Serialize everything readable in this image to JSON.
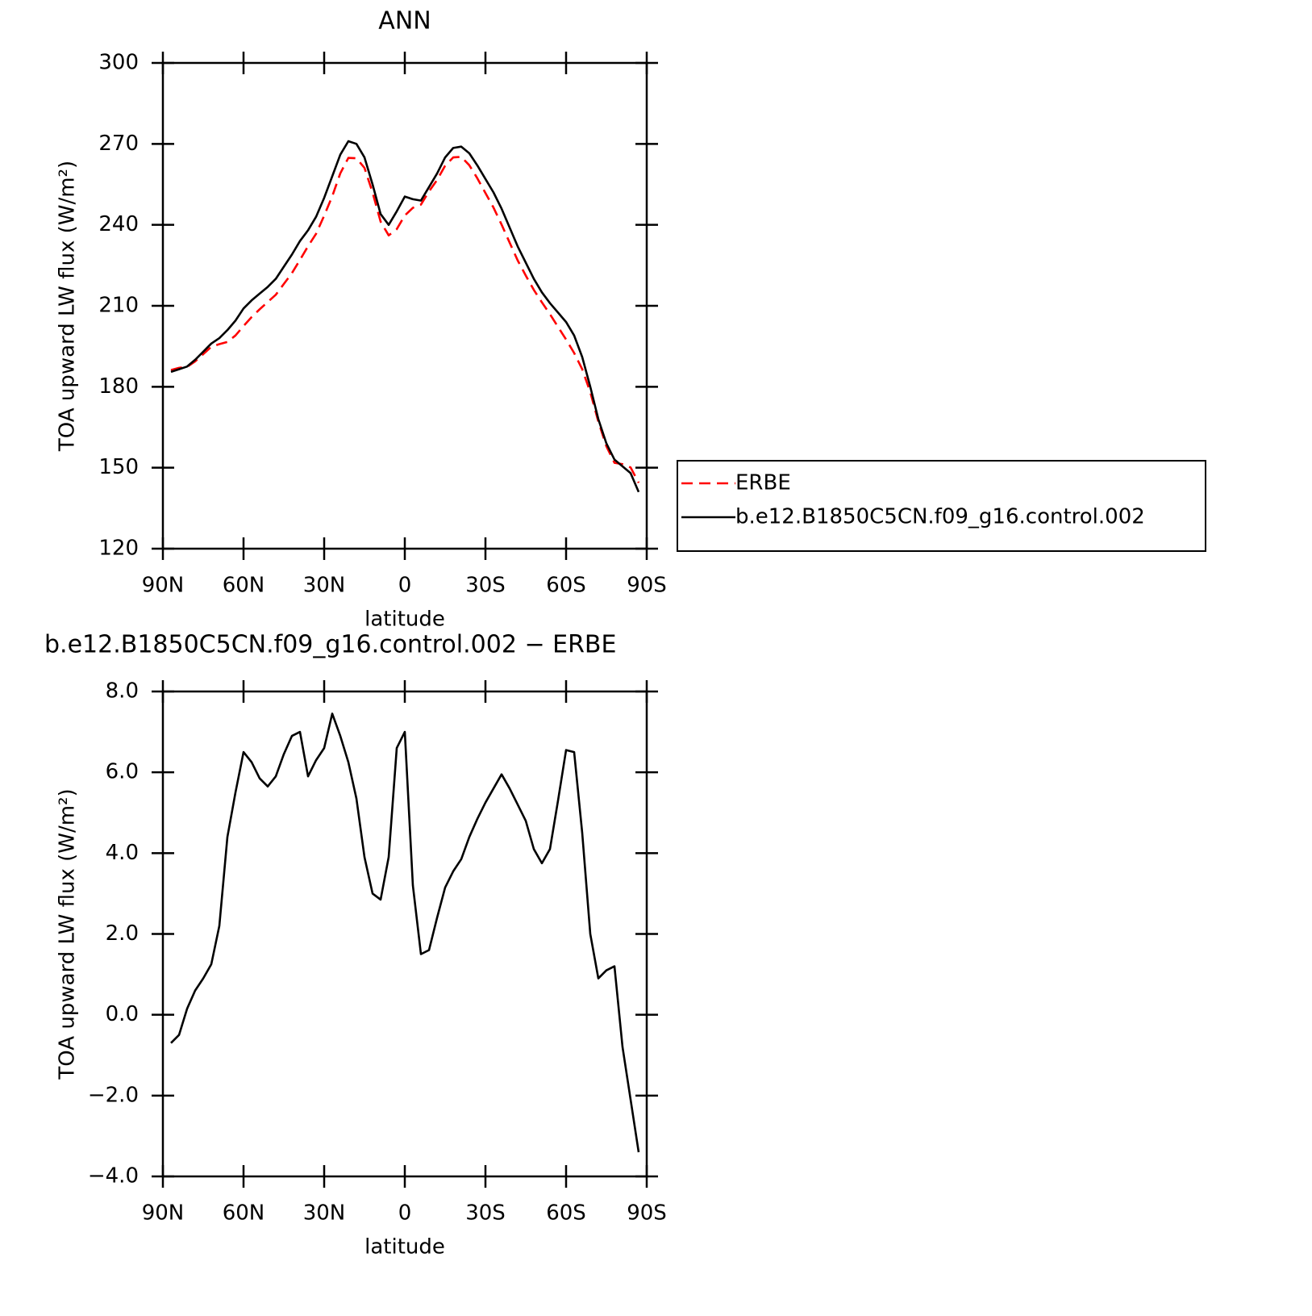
{
  "chart_data": [
    {
      "type": "line",
      "title": "ANN",
      "xlabel": "latitude",
      "ylabel": "TOA upward LW flux (W/m²)",
      "x": [
        87,
        84,
        81,
        78,
        75,
        72,
        69,
        66,
        63,
        60,
        57,
        54,
        51,
        48,
        45,
        42,
        39,
        36,
        33,
        30,
        27,
        24,
        21,
        18,
        15,
        12,
        9,
        6,
        3,
        0,
        -3,
        -6,
        -9,
        -12,
        -15,
        -18,
        -21,
        -24,
        -27,
        -30,
        -33,
        -36,
        -39,
        -42,
        -45,
        -48,
        -51,
        -54,
        -57,
        -60,
        -63,
        -66,
        -69,
        -72,
        -75,
        -78,
        -81,
        -84,
        -87
      ],
      "xlim": [
        90,
        -90
      ],
      "xticks": [
        {
          "value": 90,
          "label": "90N"
        },
        {
          "value": 60,
          "label": "60N"
        },
        {
          "value": 30,
          "label": "30N"
        },
        0,
        {
          "value": -30,
          "label": "30S"
        },
        {
          "value": -60,
          "label": "60S"
        },
        {
          "value": -90,
          "label": "90S"
        }
      ],
      "ylim": [
        120,
        300
      ],
      "yticks": [
        120,
        150,
        180,
        210,
        240,
        270,
        300
      ],
      "legend": "right",
      "series": [
        {
          "name": "ERBE",
          "color": "#ff0000",
          "dash": true,
          "values": [
            186.2,
            187.0,
            187.4,
            189.4,
            192.1,
            194.8,
            195.8,
            196.6,
            199.0,
            202.5,
            205.8,
            208.7,
            211.4,
            214.1,
            218.1,
            222.1,
            227.0,
            232.1,
            236.7,
            243.4,
            250.6,
            259.1,
            264.8,
            264.7,
            261.1,
            252.0,
            241.2,
            236.1,
            238.4,
            243.5,
            246.3,
            247.5,
            252.4,
            256.6,
            261.9,
            265.0,
            265.2,
            262.1,
            257.2,
            251.8,
            246.4,
            240.1,
            233.4,
            226.8,
            221.2,
            215.9,
            211.3,
            206.9,
            202.2,
            197.5,
            192.5,
            186.5,
            178.0,
            167.1,
            157.9,
            151.8,
            151.3,
            150.1,
            144.4
          ]
        },
        {
          "name": "b.e12.B1850C5CN.f09_g16.control.002",
          "color": "#000000",
          "dash": false,
          "values": [
            185.5,
            186.5,
            187.5,
            190,
            193,
            196,
            198,
            201,
            204.5,
            209,
            212,
            214.5,
            217,
            220,
            224.5,
            229,
            234,
            238,
            243,
            250,
            258,
            266,
            271,
            270,
            265,
            255,
            244,
            240,
            245,
            250.5,
            249.5,
            249,
            254,
            259,
            265,
            268.5,
            269,
            266.5,
            262,
            257,
            252,
            246,
            239,
            232,
            226,
            220,
            215,
            211,
            207.5,
            204,
            199,
            191,
            180,
            168,
            159,
            153,
            150.5,
            148,
            141
          ]
        }
      ]
    },
    {
      "type": "line",
      "title": "b.e12.B1850C5CN.f09_g16.control.002 − ERBE",
      "xlabel": "latitude",
      "ylabel": "TOA upward LW flux (W/m²)",
      "x": [
        87,
        84,
        81,
        78,
        75,
        72,
        69,
        66,
        63,
        60,
        57,
        54,
        51,
        48,
        45,
        42,
        39,
        36,
        33,
        30,
        27,
        24,
        21,
        18,
        15,
        12,
        9,
        6,
        3,
        0,
        -3,
        -6,
        -9,
        -12,
        -15,
        -18,
        -21,
        -24,
        -27,
        -30,
        -33,
        -36,
        -39,
        -42,
        -45,
        -48,
        -51,
        -54,
        -57,
        -60,
        -63,
        -66,
        -69,
        -72,
        -75,
        -78,
        -81,
        -84,
        -87
      ],
      "xlim": [
        90,
        -90
      ],
      "xticks": [
        {
          "value": 90,
          "label": "90N"
        },
        {
          "value": 60,
          "label": "60N"
        },
        {
          "value": 30,
          "label": "30N"
        },
        0,
        {
          "value": -30,
          "label": "30S"
        },
        {
          "value": -60,
          "label": "60S"
        },
        {
          "value": -90,
          "label": "90S"
        }
      ],
      "ylim": [
        -4,
        8
      ],
      "yticks": [
        {
          "value": -4,
          "label": "−4.0"
        },
        {
          "value": -2,
          "label": "−2.0"
        },
        {
          "value": 0,
          "label": "0.0"
        },
        {
          "value": 2,
          "label": "2.0"
        },
        {
          "value": 4,
          "label": "4.0"
        },
        {
          "value": 6,
          "label": "6.0"
        },
        {
          "value": 8,
          "label": "8.0"
        }
      ],
      "color": "#000000",
      "values": [
        -0.7,
        -0.5,
        0.15,
        0.6,
        0.9,
        1.25,
        2.2,
        4.4,
        5.5,
        6.5,
        6.25,
        5.85,
        5.65,
        5.9,
        6.45,
        6.9,
        7.0,
        5.9,
        6.3,
        6.6,
        7.45,
        6.9,
        6.25,
        5.35,
        3.9,
        3.0,
        2.85,
        3.9,
        6.6,
        7.0,
        3.2,
        1.5,
        1.6,
        2.4,
        3.15,
        3.55,
        3.85,
        4.4,
        4.85,
        5.25,
        5.6,
        5.95,
        5.6,
        5.2,
        4.8,
        4.1,
        3.75,
        4.1,
        5.3,
        6.55,
        6.5,
        4.5,
        2.0,
        0.9,
        1.1,
        1.2,
        -0.8,
        -2.1,
        -3.4
      ]
    }
  ]
}
